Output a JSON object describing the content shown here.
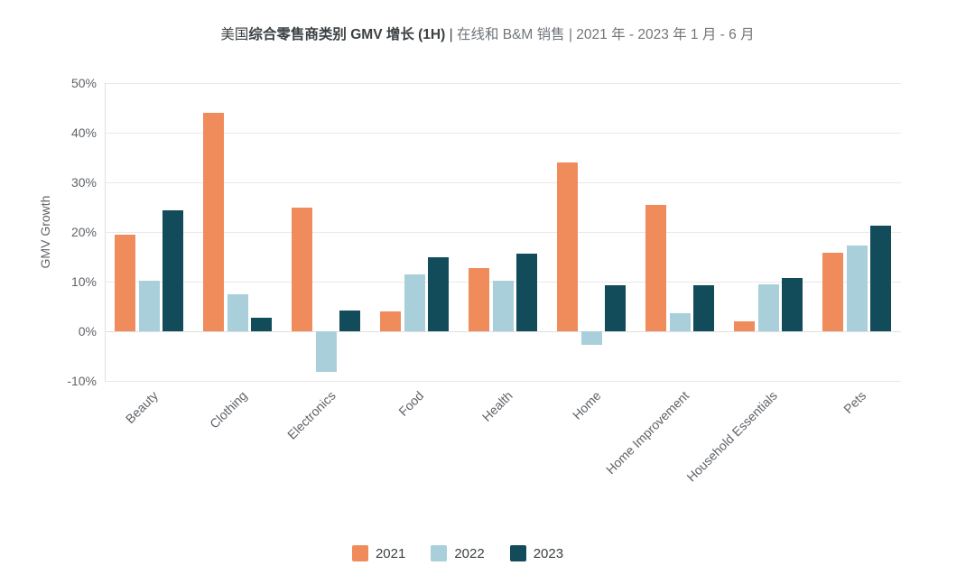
{
  "title": {
    "part_country": "美国",
    "part_bold": "综合零售商类别 GMV 增长 (1H)",
    "part_sep": " | ",
    "part_rest": "在线和 B&M 销售 | 2021 年 - 2023 年 1 月 - 6 月"
  },
  "colors": {
    "series_2021": "#F08B5C",
    "series_2022": "#A9CFDA",
    "series_2023": "#124B59",
    "grid": "#E9E9E9",
    "axis_text": "#5F6368",
    "title_dark": "#3C4043",
    "title_gray": "#70757A"
  },
  "chart_data": {
    "type": "bar",
    "title": "美国综合零售商类别 GMV 增长 (1H) | 在线和 B&M 销售 | 2021 年 - 2023 年 1 月 - 6 月",
    "xlabel": "",
    "ylabel": "GMV Growth",
    "ylim": [
      -10,
      50
    ],
    "yticks": [
      50,
      40,
      30,
      20,
      10,
      0,
      -10
    ],
    "ytick_labels": [
      "50%",
      "40%",
      "30%",
      "20%",
      "10%",
      "0%",
      "-10%"
    ],
    "grid": true,
    "legend_position": "bottom",
    "categories": [
      "Beauty",
      "Clothing",
      "Electronics",
      "Food",
      "Health",
      "Home",
      "Home Improvement",
      "Household Essentials",
      "Pets"
    ],
    "series": [
      {
        "name": "2021",
        "color": "#F08B5C",
        "values": [
          19.5,
          44.0,
          25.0,
          4.0,
          12.7,
          34.0,
          25.5,
          2.0,
          15.9
        ]
      },
      {
        "name": "2022",
        "color": "#A9CFDA",
        "values": [
          10.1,
          7.5,
          -8.2,
          11.4,
          10.1,
          -2.7,
          3.6,
          9.5,
          17.3
        ]
      },
      {
        "name": "2023",
        "color": "#124B59",
        "values": [
          24.3,
          2.8,
          4.2,
          15.0,
          15.6,
          9.2,
          9.3,
          10.8,
          21.3
        ]
      }
    ]
  }
}
